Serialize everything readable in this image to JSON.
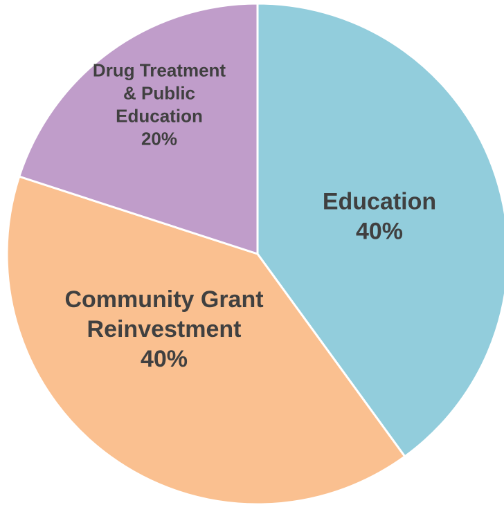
{
  "chart_data": {
    "type": "pie",
    "title": "",
    "start_angle_deg": 0,
    "direction": "clockwise",
    "slices": [
      {
        "label_lines": [
          "Education",
          "40%"
        ],
        "name": "Education",
        "value": 40,
        "color": "#92CDDC"
      },
      {
        "label_lines": [
          "Community Grant",
          "Reinvestment",
          "40%"
        ],
        "name": "Community Grant Reinvestment",
        "value": 40,
        "color": "#FAC090"
      },
      {
        "label_lines": [
          "Drug Treatment",
          "& Public",
          "Education",
          "20%"
        ],
        "name": "Drug Treatment & Public Education",
        "value": 20,
        "color": "#C09DCA"
      }
    ]
  }
}
